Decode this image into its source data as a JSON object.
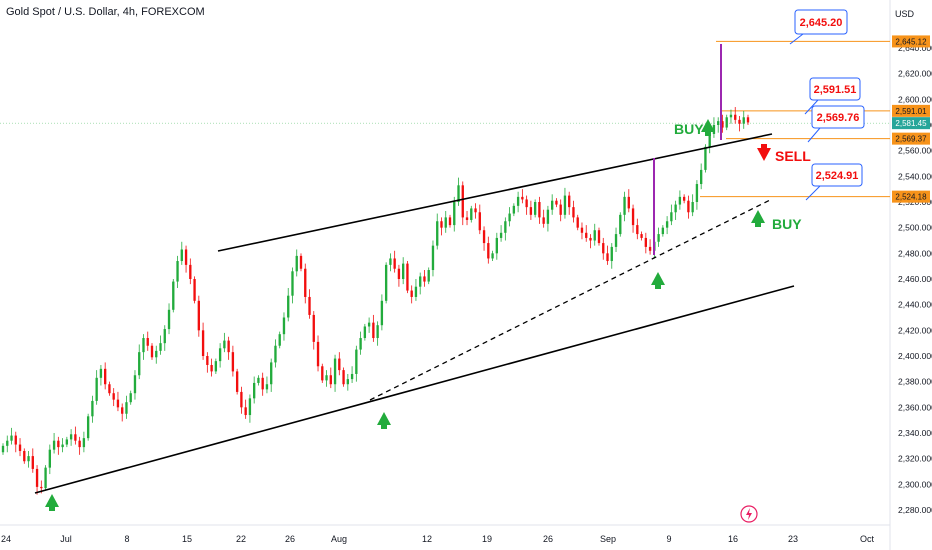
{
  "chart_data": {
    "type": "candlestick",
    "title": "Gold Spot / U.S. Dollar, 4h, FOREXCOM",
    "currency": "USD",
    "ylim": [
      2270,
      2655
    ],
    "x_tick_labels": [
      "24",
      "Jul",
      "8",
      "15",
      "22",
      "26",
      "Aug",
      "12",
      "19",
      "26",
      "Sep",
      "9",
      "16",
      "23",
      "Oct"
    ],
    "y_tick_labels": [
      2280,
      2300,
      2320,
      2340,
      2360,
      2380,
      2400,
      2420,
      2440,
      2460,
      2480,
      2500,
      2520,
      2540,
      2560,
      2580,
      2600,
      2620,
      2640
    ],
    "closes": [
      2330,
      2334,
      2338,
      2331,
      2326,
      2318,
      2322,
      2312,
      2298,
      2297,
      2313,
      2327,
      2334,
      2329,
      2331,
      2335,
      2339,
      2334,
      2329,
      2336,
      2353,
      2365,
      2383,
      2390,
      2378,
      2371,
      2366,
      2360,
      2355,
      2364,
      2371,
      2385,
      2403,
      2414,
      2408,
      2399,
      2404,
      2410,
      2421,
      2436,
      2458,
      2474,
      2483,
      2471,
      2460,
      2443,
      2420,
      2400,
      2393,
      2388,
      2396,
      2406,
      2412,
      2403,
      2388,
      2372,
      2360,
      2354,
      2367,
      2379,
      2383,
      2374,
      2378,
      2395,
      2408,
      2417,
      2430,
      2447,
      2466,
      2478,
      2468,
      2446,
      2432,
      2411,
      2392,
      2381,
      2385,
      2378,
      2398,
      2389,
      2378,
      2382,
      2386,
      2405,
      2414,
      2423,
      2426,
      2414,
      2424,
      2443,
      2471,
      2476,
      2468,
      2460,
      2472,
      2451,
      2446,
      2454,
      2462,
      2458,
      2467,
      2486,
      2505,
      2500,
      2508,
      2502,
      2520,
      2533,
      2508,
      2506,
      2515,
      2512,
      2498,
      2488,
      2476,
      2480,
      2492,
      2496,
      2505,
      2511,
      2517,
      2524,
      2522,
      2516,
      2510,
      2520,
      2508,
      2503,
      2514,
      2521,
      2518,
      2510,
      2525,
      2516,
      2508,
      2500,
      2496,
      2492,
      2490,
      2498,
      2488,
      2480,
      2474,
      2485,
      2495,
      2510,
      2524,
      2515,
      2502,
      2495,
      2492,
      2485,
      2482,
      2489,
      2495,
      2500,
      2505,
      2512,
      2518,
      2524,
      2521,
      2512,
      2520,
      2534,
      2545,
      2563,
      2573,
      2580,
      2583,
      2578,
      2586,
      2588,
      2584,
      2581,
      2586,
      2582
    ],
    "horizontal_levels": [
      {
        "value": 2645.12,
        "label": "2,645.12",
        "color": "#f7931a"
      },
      {
        "value": 2591.01,
        "label": "2,591.01",
        "color": "#f7931a"
      },
      {
        "value": 2569.37,
        "label": "2,569.37",
        "color": "#f7931a"
      },
      {
        "value": 2524.18,
        "label": "2,524.18",
        "color": "#f7931a"
      }
    ],
    "current_price": {
      "label": "2,581.45",
      "color": "#26a69a"
    },
    "callouts": [
      {
        "label": "2,645.20"
      },
      {
        "label": "2,591.51"
      },
      {
        "label": "2,569.76"
      },
      {
        "label": "2,524.91"
      }
    ],
    "annotations": [
      {
        "label": "BUY",
        "color": "#22ab3c"
      },
      {
        "label": "SELL",
        "color": "#f20e0e"
      },
      {
        "label": "BUY",
        "color": "#22ab3c"
      }
    ],
    "colors": {
      "up": "#22ab3c",
      "down": "#f20e0e",
      "level": "#f7931a",
      "callout_border": "#2962ff",
      "callout_text": "#f20e0e",
      "spike": "#9c27b0"
    }
  }
}
